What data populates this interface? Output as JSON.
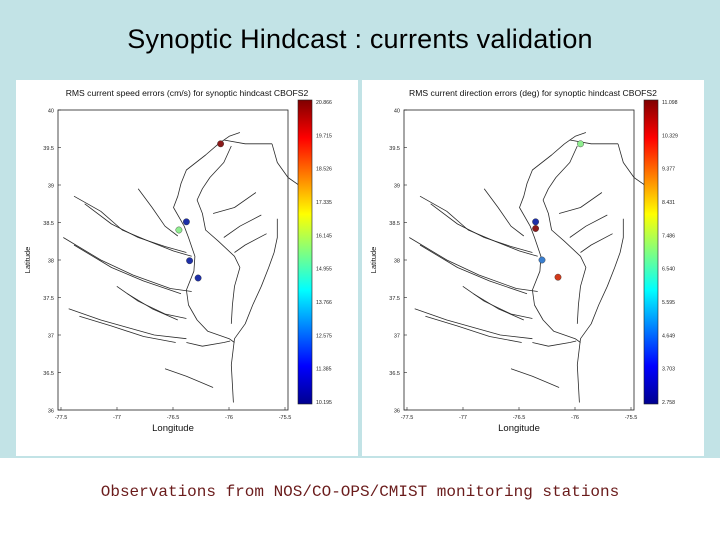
{
  "slide": {
    "title": "Synoptic Hindcast : currents validation",
    "caption": "Observations from NOS/CO-OPS/CMIST monitoring stations"
  },
  "maps": [
    {
      "id": "speed",
      "title": "RMS current speed errors (cm/s) for synoptic hindcast CBOFS2",
      "xlabel": "Longitude",
      "ylabel": "Latitude",
      "yticks": [
        "40",
        "39.5",
        "39",
        "38.5",
        "38",
        "37.5",
        "37",
        "36.5",
        "36"
      ],
      "xticks": [
        "-77.5",
        "-77",
        "-76.5",
        "-76",
        "-75.5"
      ],
      "colorbar_ticks": [
        "20.866",
        "19.715",
        "18.526",
        "17.335",
        "16.145",
        "14.955",
        "13.766",
        "12.575",
        "11.385",
        "10.195"
      ],
      "stations": [
        {
          "lon": -76.08,
          "lat": 39.55,
          "color": "#8b1a1a"
        },
        {
          "lon": -76.4,
          "lat": 38.51,
          "color": "#1d2fa8"
        },
        {
          "lon": -76.47,
          "lat": 38.4,
          "color": "#90ee90"
        },
        {
          "lon": -76.37,
          "lat": 37.99,
          "color": "#1d2fa8"
        },
        {
          "lon": -76.29,
          "lat": 37.76,
          "color": "#1d2fa8"
        }
      ]
    },
    {
      "id": "direction",
      "title": "RMS current direction errors (deg) for synoptic hindcast CBOFS2",
      "xlabel": "Longitude",
      "ylabel": "Latitude",
      "yticks": [
        "40",
        "39.5",
        "39",
        "38.5",
        "38",
        "37.5",
        "37",
        "36.5",
        "36"
      ],
      "xticks": [
        "-77.5",
        "-77",
        "-76.5",
        "-76",
        "-75.5"
      ],
      "colorbar_ticks": [
        "11.098",
        "10.329",
        "9.377",
        "8.431",
        "7.486",
        "6.540",
        "5.595",
        "4.649",
        "3.703",
        "2.758"
      ],
      "stations": [
        {
          "lon": -75.95,
          "lat": 39.55,
          "color": "#90ee90"
        },
        {
          "lon": -76.37,
          "lat": 38.51,
          "color": "#1d2fa8"
        },
        {
          "lon": -76.37,
          "lat": 38.42,
          "color": "#8b1a1a"
        },
        {
          "lon": -76.31,
          "lat": 38.0,
          "color": "#3a7fd0"
        },
        {
          "lon": -76.16,
          "lat": 37.77,
          "color": "#d23a1a"
        }
      ]
    }
  ]
}
